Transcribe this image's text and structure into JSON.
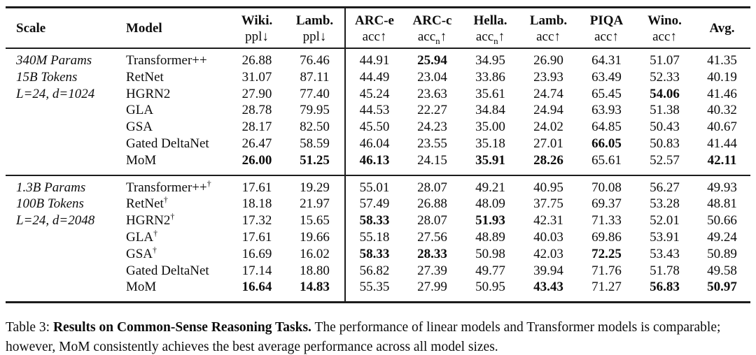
{
  "table": {
    "columns": [
      {
        "title": "Scale",
        "sub_pre": "",
        "sub_n": "",
        "sub_post": ""
      },
      {
        "title": "Model",
        "sub_pre": "",
        "sub_n": "",
        "sub_post": ""
      },
      {
        "title": "Wiki.",
        "sub_pre": "ppl",
        "sub_n": "",
        "sub_post": "↓"
      },
      {
        "title": "Lamb.",
        "sub_pre": "ppl",
        "sub_n": "",
        "sub_post": "↓"
      },
      {
        "title": "ARC-e",
        "sub_pre": "acc",
        "sub_n": "",
        "sub_post": "↑"
      },
      {
        "title": "ARC-c",
        "sub_pre": "acc",
        "sub_n": "n",
        "sub_post": "↑"
      },
      {
        "title": "Hella.",
        "sub_pre": "acc",
        "sub_n": "n",
        "sub_post": "↑"
      },
      {
        "title": "Lamb.",
        "sub_pre": "acc",
        "sub_n": "",
        "sub_post": "↑"
      },
      {
        "title": "PIQA",
        "sub_pre": "acc",
        "sub_n": "",
        "sub_post": "↑"
      },
      {
        "title": "Wino.",
        "sub_pre": "acc",
        "sub_n": "",
        "sub_post": "↑"
      },
      {
        "title": "Avg.",
        "sub_pre": "",
        "sub_n": "",
        "sub_post": ""
      }
    ],
    "blocks": [
      {
        "scale_lines": [
          "340M Params",
          "15B Tokens",
          "L=24, d=1024"
        ],
        "rows": [
          {
            "model": "Transformer++",
            "sup": "",
            "values": [
              "26.88",
              "76.46",
              "44.91",
              "25.94",
              "34.95",
              "26.90",
              "64.31",
              "51.07",
              "41.35"
            ],
            "bold": [
              3
            ]
          },
          {
            "model": "RetNet",
            "sup": "",
            "values": [
              "31.07",
              "87.11",
              "44.49",
              "23.04",
              "33.86",
              "23.93",
              "63.49",
              "52.33",
              "40.19"
            ],
            "bold": []
          },
          {
            "model": "HGRN2",
            "sup": "",
            "values": [
              "27.90",
              "77.40",
              "45.24",
              "23.63",
              "35.61",
              "24.74",
              "65.45",
              "54.06",
              "41.46"
            ],
            "bold": [
              7
            ]
          },
          {
            "model": "GLA",
            "sup": "",
            "values": [
              "28.78",
              "79.95",
              "44.53",
              "22.27",
              "34.84",
              "24.94",
              "63.93",
              "51.38",
              "40.32"
            ],
            "bold": []
          },
          {
            "model": "GSA",
            "sup": "",
            "values": [
              "28.17",
              "82.50",
              "45.50",
              "24.23",
              "35.00",
              "24.02",
              "64.85",
              "50.43",
              "40.67"
            ],
            "bold": []
          },
          {
            "model": "Gated DeltaNet",
            "sup": "",
            "values": [
              "26.47",
              "58.59",
              "46.04",
              "23.55",
              "35.18",
              "27.01",
              "66.05",
              "50.83",
              "41.44"
            ],
            "bold": [
              6
            ]
          },
          {
            "model": "MoM",
            "sup": "",
            "values": [
              "26.00",
              "51.25",
              "46.13",
              "24.15",
              "35.91",
              "28.26",
              "65.61",
              "52.57",
              "42.11"
            ],
            "bold": [
              0,
              1,
              2,
              4,
              5,
              8
            ]
          }
        ]
      },
      {
        "scale_lines": [
          "1.3B Params",
          "100B Tokens",
          "L=24, d=2048"
        ],
        "rows": [
          {
            "model": "Transformer++",
            "sup": "†",
            "values": [
              "17.61",
              "19.29",
              "55.01",
              "28.07",
              "49.21",
              "40.95",
              "70.08",
              "56.27",
              "49.93"
            ],
            "bold": []
          },
          {
            "model": "RetNet",
            "sup": "†",
            "values": [
              "18.18",
              "21.97",
              "57.49",
              "26.88",
              "48.09",
              "37.75",
              "69.37",
              "53.28",
              "48.81"
            ],
            "bold": []
          },
          {
            "model": "HGRN2",
            "sup": "†",
            "values": [
              "17.32",
              "15.65",
              "58.33",
              "28.07",
              "51.93",
              "42.31",
              "71.33",
              "52.01",
              "50.66"
            ],
            "bold": [
              2,
              4
            ]
          },
          {
            "model": "GLA",
            "sup": "†",
            "values": [
              "17.61",
              "19.66",
              "55.18",
              "27.56",
              "48.89",
              "40.03",
              "69.86",
              "53.91",
              "49.24"
            ],
            "bold": []
          },
          {
            "model": "GSA",
            "sup": "†",
            "values": [
              "16.69",
              "16.02",
              "58.33",
              "28.33",
              "50.98",
              "42.03",
              "72.25",
              "53.43",
              "50.89"
            ],
            "bold": [
              2,
              3,
              6
            ]
          },
          {
            "model": "Gated DeltaNet",
            "sup": "",
            "values": [
              "17.14",
              "18.80",
              "56.82",
              "27.39",
              "49.77",
              "39.94",
              "71.76",
              "51.78",
              "49.58"
            ],
            "bold": []
          },
          {
            "model": "MoM",
            "sup": "",
            "values": [
              "16.64",
              "14.83",
              "55.35",
              "27.99",
              "50.95",
              "43.43",
              "71.27",
              "56.83",
              "50.97"
            ],
            "bold": [
              0,
              1,
              5,
              7,
              8
            ]
          }
        ]
      }
    ]
  },
  "caption": {
    "prefix": "Table 3: ",
    "bold": "Results on Common-Sense Reasoning Tasks.",
    "rest": " The performance of linear models and Transformer models is comparable; however, MoM consistently achieves the best average performance across all model sizes."
  }
}
